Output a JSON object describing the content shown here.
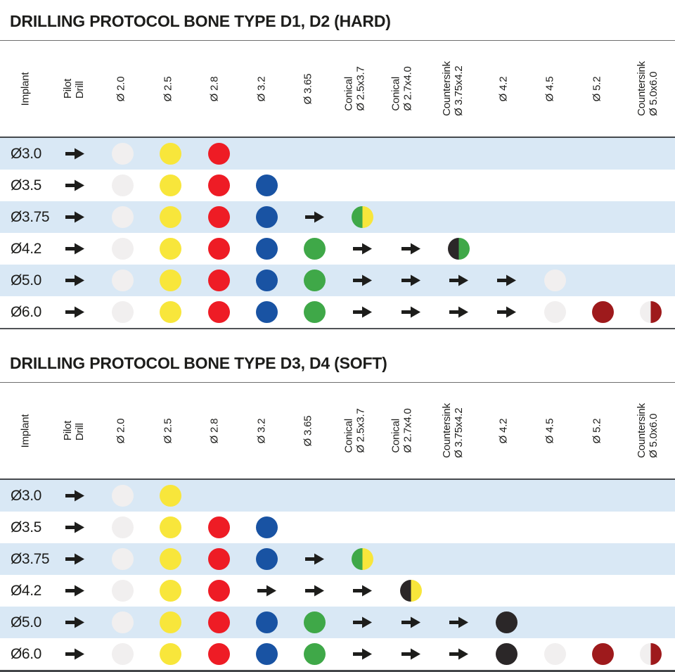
{
  "columns": [
    "Implant",
    "Pilot\nDrill",
    "Ø 2.0",
    "Ø 2.5",
    "Ø 2.8",
    "Ø 3.2",
    "Ø 3.65",
    "Conical\nØ 2.5x3.7",
    "Conical\nØ 2.7x4.0",
    "Countersink\nØ 3.75x4.2",
    "Ø 4.2",
    "Ø 4.5",
    "Ø 5.2",
    "Countersink\nØ 5.0x6.0"
  ],
  "colors": {
    "white": "#f1efef",
    "yellow": "#f8e63b",
    "red": "#ee1c25",
    "blue": "#1953a3",
    "green": "#3fa848",
    "black": "#2b2728",
    "darkred": "#9e1a1c",
    "arrow": "#1d1d1b",
    "stripe": "#d9e8f5"
  },
  "tables": [
    {
      "title": "DRILLING PROTOCOL BONE TYPE D1, D2 (HARD)",
      "rows": [
        {
          "implant": "Ø3.0",
          "cells": [
            "arrow",
            "dot:white",
            "dot:yellow",
            "dot:red",
            "",
            "",
            "",
            "",
            "",
            "",
            "",
            "",
            ""
          ]
        },
        {
          "implant": "Ø3.5",
          "cells": [
            "arrow",
            "dot:white",
            "dot:yellow",
            "dot:red",
            "dot:blue",
            "",
            "",
            "",
            "",
            "",
            "",
            "",
            ""
          ]
        },
        {
          "implant": "Ø3.75",
          "cells": [
            "arrow",
            "dot:white",
            "dot:yellow",
            "dot:red",
            "dot:blue",
            "arrow",
            "half:green,yellow",
            "",
            "",
            "",
            "",
            "",
            ""
          ]
        },
        {
          "implant": "Ø4.2",
          "cells": [
            "arrow",
            "dot:white",
            "dot:yellow",
            "dot:red",
            "dot:blue",
            "dot:green",
            "arrow",
            "arrow",
            "half:black,green",
            "",
            "",
            "",
            ""
          ]
        },
        {
          "implant": "Ø5.0",
          "cells": [
            "arrow",
            "dot:white",
            "dot:yellow",
            "dot:red",
            "dot:blue",
            "dot:green",
            "arrow",
            "arrow",
            "arrow",
            "arrow",
            "dot:white",
            "",
            ""
          ]
        },
        {
          "implant": "Ø6.0",
          "cells": [
            "arrow",
            "dot:white",
            "dot:yellow",
            "dot:red",
            "dot:blue",
            "dot:green",
            "arrow",
            "arrow",
            "arrow",
            "arrow",
            "dot:white",
            "dot:darkred",
            "half:white,darkred"
          ]
        }
      ]
    },
    {
      "title": "DRILLING PROTOCOL BONE TYPE D3, D4 (SOFT)",
      "rows": [
        {
          "implant": "Ø3.0",
          "cells": [
            "arrow",
            "dot:white",
            "dot:yellow",
            "",
            "",
            "",
            "",
            "",
            "",
            "",
            "",
            "",
            ""
          ]
        },
        {
          "implant": "Ø3.5",
          "cells": [
            "arrow",
            "dot:white",
            "dot:yellow",
            "dot:red",
            "dot:blue",
            "",
            "",
            "",
            "",
            "",
            "",
            "",
            ""
          ]
        },
        {
          "implant": "Ø3.75",
          "cells": [
            "arrow",
            "dot:white",
            "dot:yellow",
            "dot:red",
            "dot:blue",
            "arrow",
            "half:green,yellow",
            "",
            "",
            "",
            "",
            "",
            ""
          ]
        },
        {
          "implant": "Ø4.2",
          "cells": [
            "arrow",
            "dot:white",
            "dot:yellow",
            "dot:red",
            "arrow",
            "arrow",
            "arrow",
            "half:black,yellow",
            "",
            "",
            "",
            "",
            ""
          ]
        },
        {
          "implant": "Ø5.0",
          "cells": [
            "arrow",
            "dot:white",
            "dot:yellow",
            "dot:red",
            "dot:blue",
            "dot:green",
            "arrow",
            "arrow",
            "arrow",
            "dot:black",
            "",
            "",
            ""
          ]
        },
        {
          "implant": "Ø6.0",
          "cells": [
            "arrow",
            "dot:white",
            "dot:yellow",
            "dot:red",
            "dot:blue",
            "dot:green",
            "arrow",
            "arrow",
            "arrow",
            "dot:black",
            "dot:white",
            "dot:darkred",
            "half:white,darkred"
          ]
        }
      ]
    }
  ]
}
